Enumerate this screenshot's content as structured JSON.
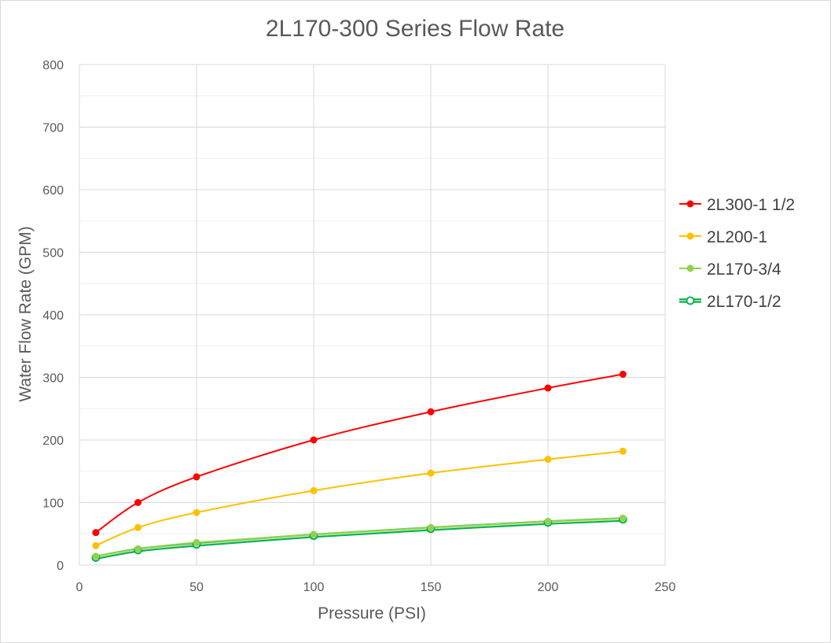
{
  "chart_data": {
    "type": "line",
    "title": "2L170-300 Series Flow Rate",
    "xlabel": "Pressure (PSI)",
    "ylabel": "Water Flow Rate (GPM)",
    "xlim": [
      0,
      250
    ],
    "ylim": [
      0,
      800
    ],
    "xticks": [
      0,
      50,
      100,
      150,
      200,
      250
    ],
    "yticks": [
      0,
      100,
      200,
      300,
      400,
      500,
      600,
      700,
      800
    ],
    "grid": true,
    "legend_position": "right",
    "series": [
      {
        "name": "2L300-1 1/2",
        "color": "#ff0000",
        "marker": "filled-circle",
        "x": [
          7,
          25,
          50,
          100,
          150,
          200,
          232
        ],
        "y": [
          52,
          100,
          141,
          200,
          245,
          283,
          305
        ]
      },
      {
        "name": "2L200-1",
        "color": "#ffc000",
        "marker": "filled-circle",
        "x": [
          7,
          25,
          50,
          100,
          150,
          200,
          232
        ],
        "y": [
          31,
          60,
          84,
          119,
          147,
          169,
          182
        ]
      },
      {
        "name": "2L170-3/4",
        "color": "#92d050",
        "marker": "filled-circle",
        "x": [
          7,
          25,
          50,
          100,
          150,
          200,
          232
        ],
        "y": [
          14,
          26,
          36,
          49,
          60,
          70,
          75
        ]
      },
      {
        "name": "2L170-1/2",
        "color": "#00b050",
        "marker": "hollow-circle",
        "x": [
          7,
          25,
          50,
          100,
          150,
          200,
          232
        ],
        "y": [
          12,
          24,
          33,
          47,
          58,
          68,
          73
        ]
      }
    ]
  }
}
